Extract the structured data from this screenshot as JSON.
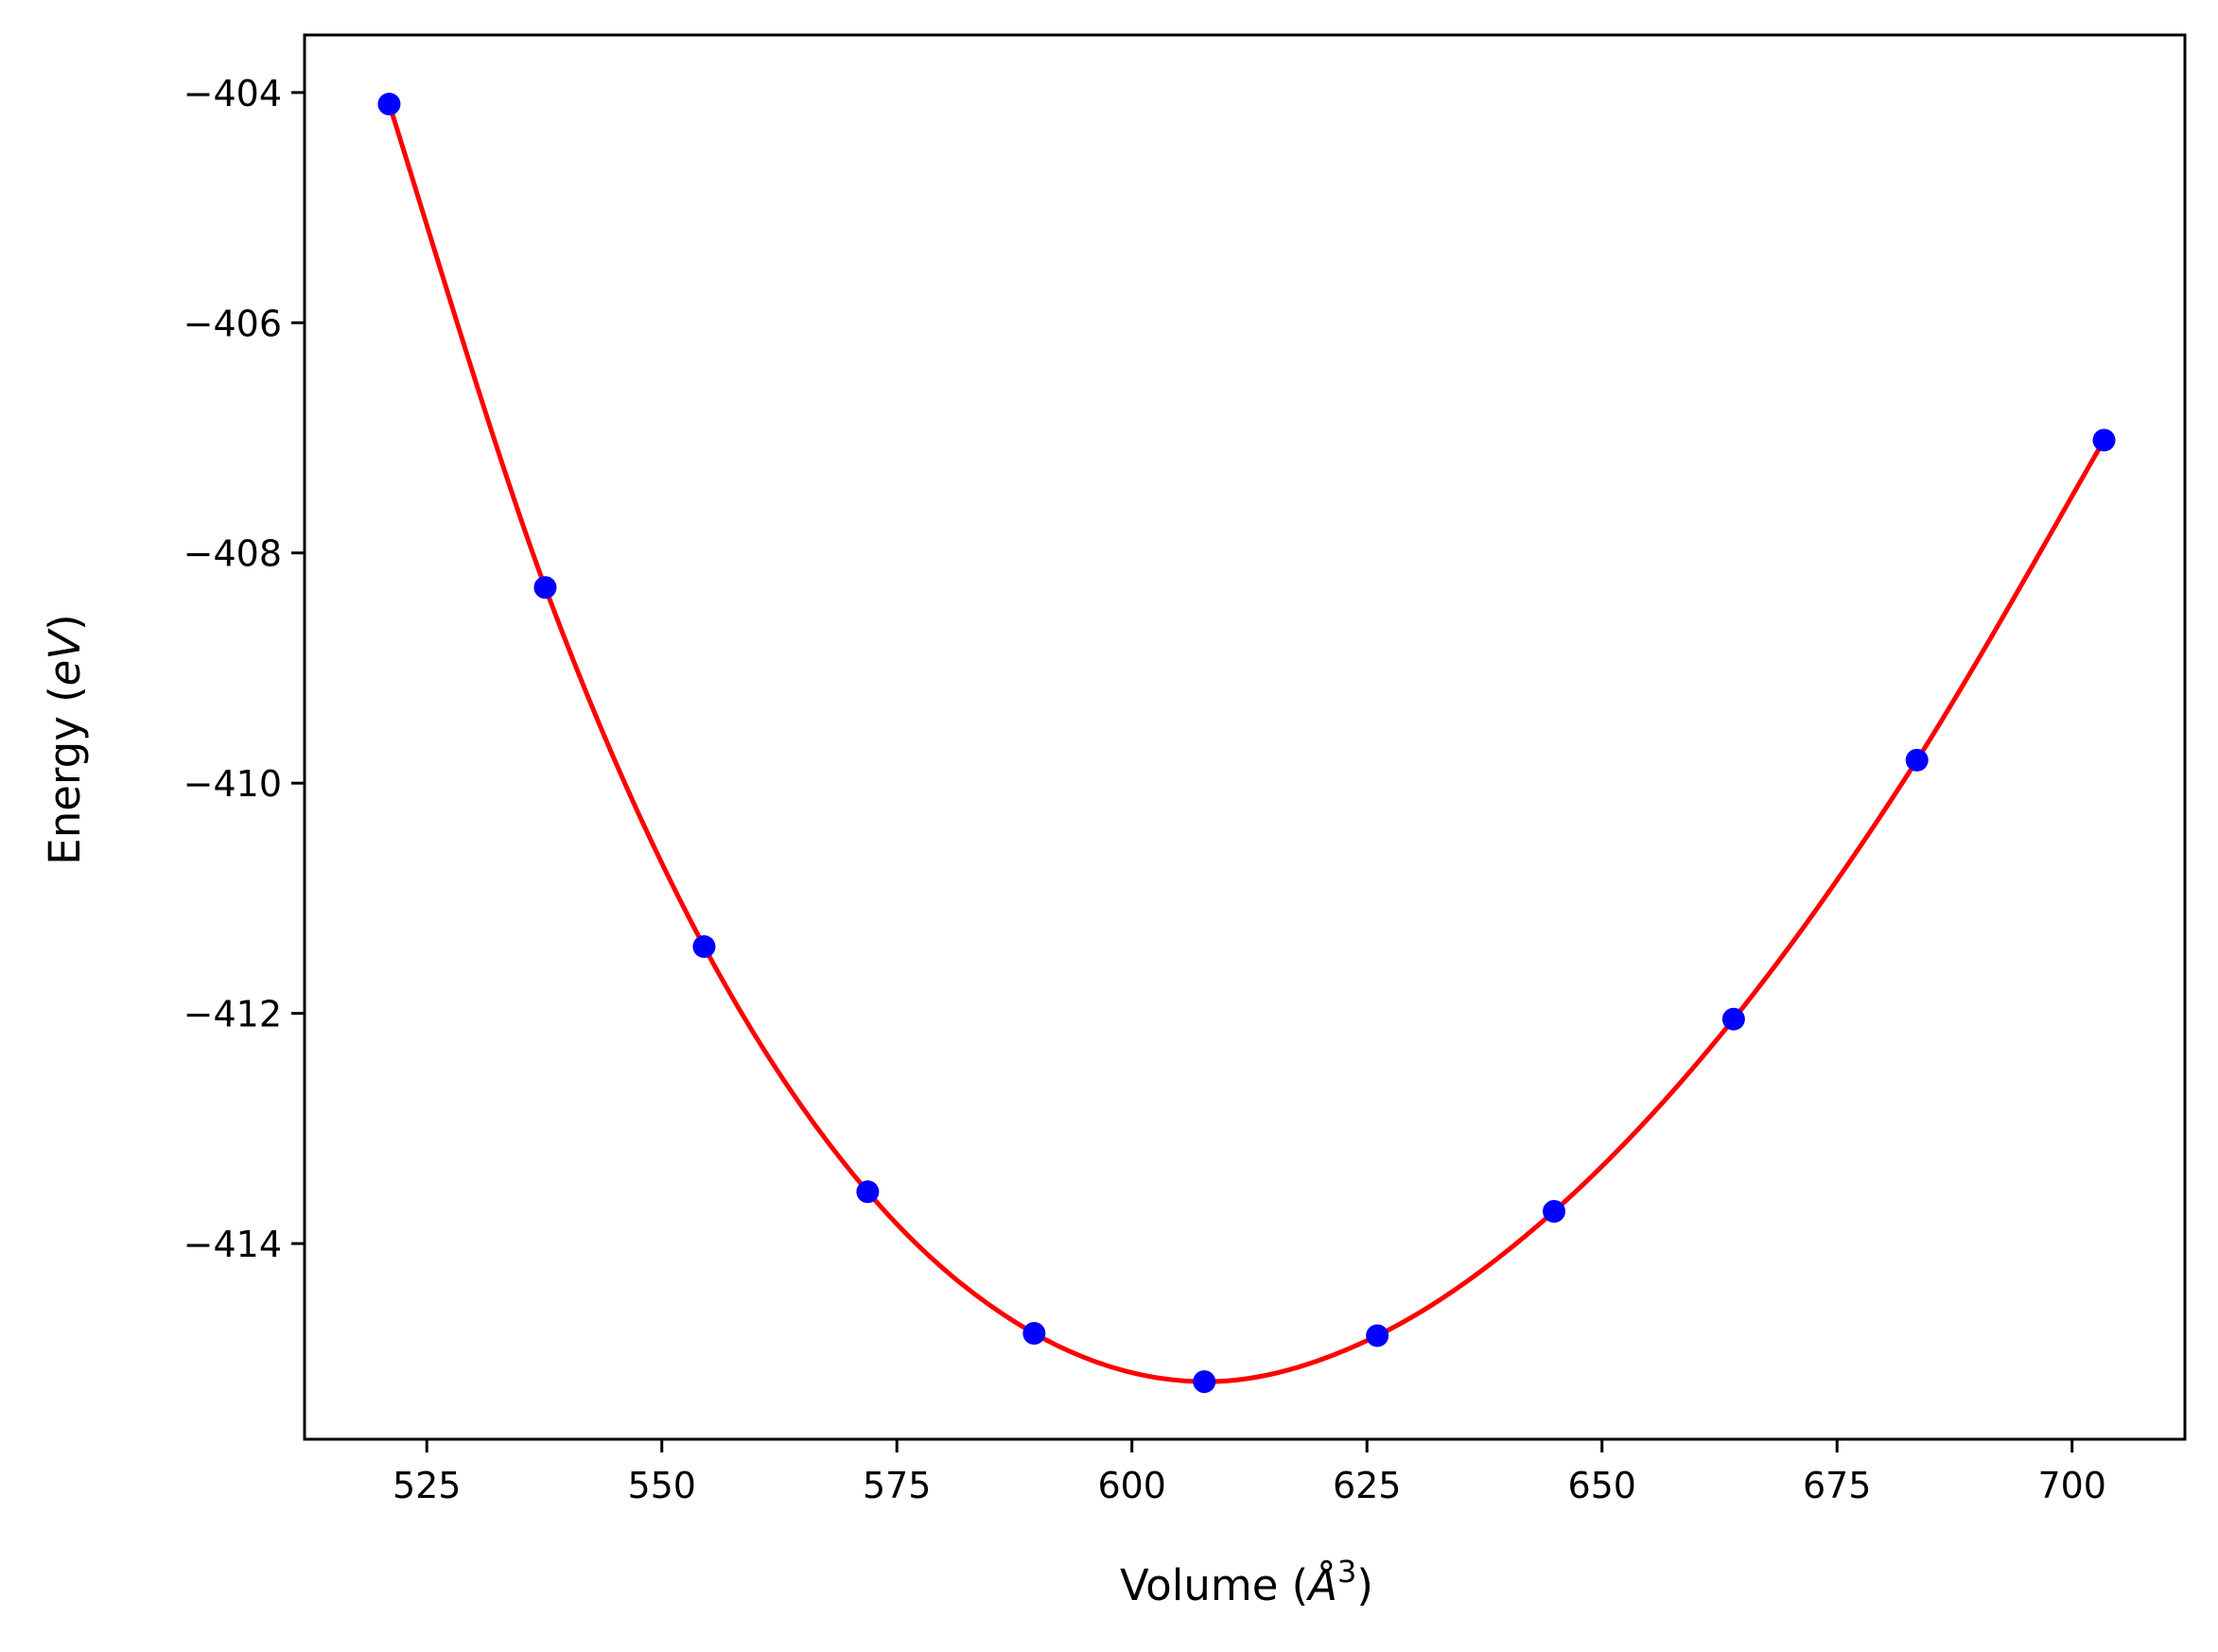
{
  "chart_data": {
    "type": "line",
    "title": "",
    "xlabel": {
      "prefix": "Volume (",
      "italic": "Å",
      "superscript": "3",
      "suffix": ")"
    },
    "ylabel": {
      "prefix": "Energy (",
      "italic": "eV",
      "suffix": ")"
    },
    "xlim": [
      512,
      712
    ],
    "ylim": [
      -415.7,
      -403.5
    ],
    "xticks": [
      525,
      550,
      575,
      600,
      625,
      650,
      675,
      700
    ],
    "xtick_labels": [
      "525",
      "550",
      "575",
      "600",
      "625",
      "650",
      "675",
      "700"
    ],
    "yticks": [
      -404,
      -406,
      -408,
      -410,
      -412,
      -414
    ],
    "ytick_labels": [
      "−404",
      "−406",
      "−408",
      "−410",
      "−412",
      "−414"
    ],
    "grid": false,
    "series": [
      {
        "kind": "scatter",
        "color": "#0000ff",
        "x": [
          521.0,
          537.6,
          554.5,
          571.9,
          589.6,
          607.7,
          626.1,
          644.9,
          664.0,
          683.5,
          703.4
        ],
        "y": [
          -404.1,
          -408.3,
          -411.42,
          -413.55,
          -414.78,
          -415.2,
          -414.8,
          -413.72,
          -412.05,
          -409.8,
          -407.02
        ]
      },
      {
        "kind": "line",
        "color": "#ff0000",
        "x": [
          521.0,
          537.6,
          554.5,
          571.9,
          589.6,
          607.7,
          626.1,
          644.9,
          664.0,
          683.5,
          703.4
        ],
        "y": [
          -404.1,
          -408.3,
          -411.42,
          -413.55,
          -414.78,
          -415.2,
          -414.8,
          -413.72,
          -412.05,
          -409.8,
          -407.02
        ]
      }
    ]
  }
}
